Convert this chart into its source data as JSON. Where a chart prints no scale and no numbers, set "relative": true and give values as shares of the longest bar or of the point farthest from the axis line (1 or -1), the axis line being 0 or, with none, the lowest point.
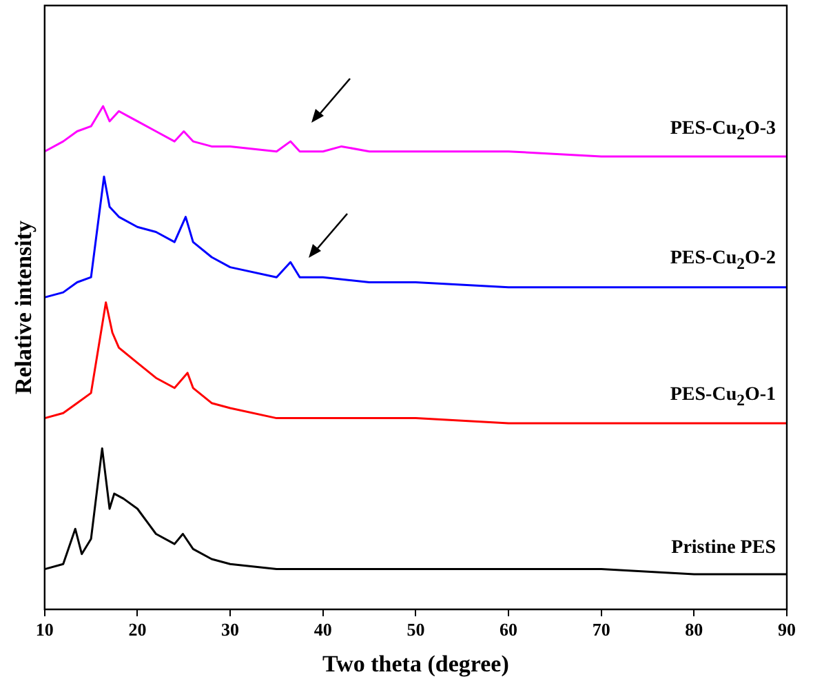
{
  "chart_data": {
    "type": "line",
    "xlabel": "Two theta (degree)",
    "ylabel": "Relative intensity",
    "relative": true,
    "xlim": [
      10,
      90
    ],
    "xticks": [
      10,
      20,
      30,
      40,
      50,
      60,
      70,
      80,
      90
    ],
    "grid": false,
    "legend": false,
    "marker": "none",
    "line_style": "solid",
    "series": [
      {
        "name": "PES-Cu$_{2}$O-3",
        "color": "#ff00ff",
        "x": [
          10,
          12,
          13.5,
          15,
          16.3,
          17,
          18,
          19,
          20,
          22,
          24,
          25,
          26,
          28,
          30,
          35,
          36.5,
          37.5,
          40,
          42,
          45,
          50,
          60,
          70,
          80,
          90
        ],
        "values": [
          0.91,
          0.93,
          0.95,
          0.96,
          1.0,
          0.97,
          0.99,
          0.98,
          0.97,
          0.95,
          0.93,
          0.95,
          0.93,
          0.92,
          0.92,
          0.91,
          0.93,
          0.91,
          0.91,
          0.92,
          0.91,
          0.91,
          0.91,
          0.9,
          0.9,
          0.9
        ]
      },
      {
        "name": "PES-Cu$_{2}$O-2",
        "color": "#0000ff",
        "x": [
          10,
          12,
          13.5,
          15,
          16.4,
          17,
          18,
          20,
          22,
          24,
          25.2,
          26,
          28,
          30,
          35,
          36.5,
          37.5,
          40,
          45,
          50,
          60,
          70,
          80,
          90
        ],
        "values": [
          0.62,
          0.63,
          0.65,
          0.66,
          0.86,
          0.8,
          0.78,
          0.76,
          0.75,
          0.73,
          0.78,
          0.73,
          0.7,
          0.68,
          0.66,
          0.69,
          0.66,
          0.66,
          0.65,
          0.65,
          0.64,
          0.64,
          0.64,
          0.64
        ]
      },
      {
        "name": "PES-Cu$_{2}$O-1",
        "color": "#ff0000",
        "x": [
          10,
          12,
          13.5,
          15,
          16.6,
          17.3,
          18,
          20,
          22,
          24,
          25.4,
          26,
          28,
          30,
          35,
          40,
          50,
          60,
          70,
          80,
          90
        ],
        "values": [
          0.38,
          0.39,
          0.41,
          0.43,
          0.61,
          0.55,
          0.52,
          0.49,
          0.46,
          0.44,
          0.47,
          0.44,
          0.41,
          0.4,
          0.38,
          0.38,
          0.38,
          0.37,
          0.37,
          0.37,
          0.37
        ]
      },
      {
        "name": "Pristine PES",
        "color": "#000000",
        "x": [
          10,
          12,
          13.3,
          14,
          15,
          16.2,
          17,
          17.5,
          18.5,
          20,
          22,
          24,
          24.9,
          26,
          28,
          30,
          35,
          40,
          50,
          60,
          70,
          80,
          90
        ],
        "values": [
          0.08,
          0.09,
          0.16,
          0.11,
          0.14,
          0.32,
          0.2,
          0.23,
          0.22,
          0.2,
          0.15,
          0.13,
          0.15,
          0.12,
          0.1,
          0.09,
          0.08,
          0.08,
          0.08,
          0.08,
          0.08,
          0.07,
          0.07
        ]
      }
    ]
  }
}
